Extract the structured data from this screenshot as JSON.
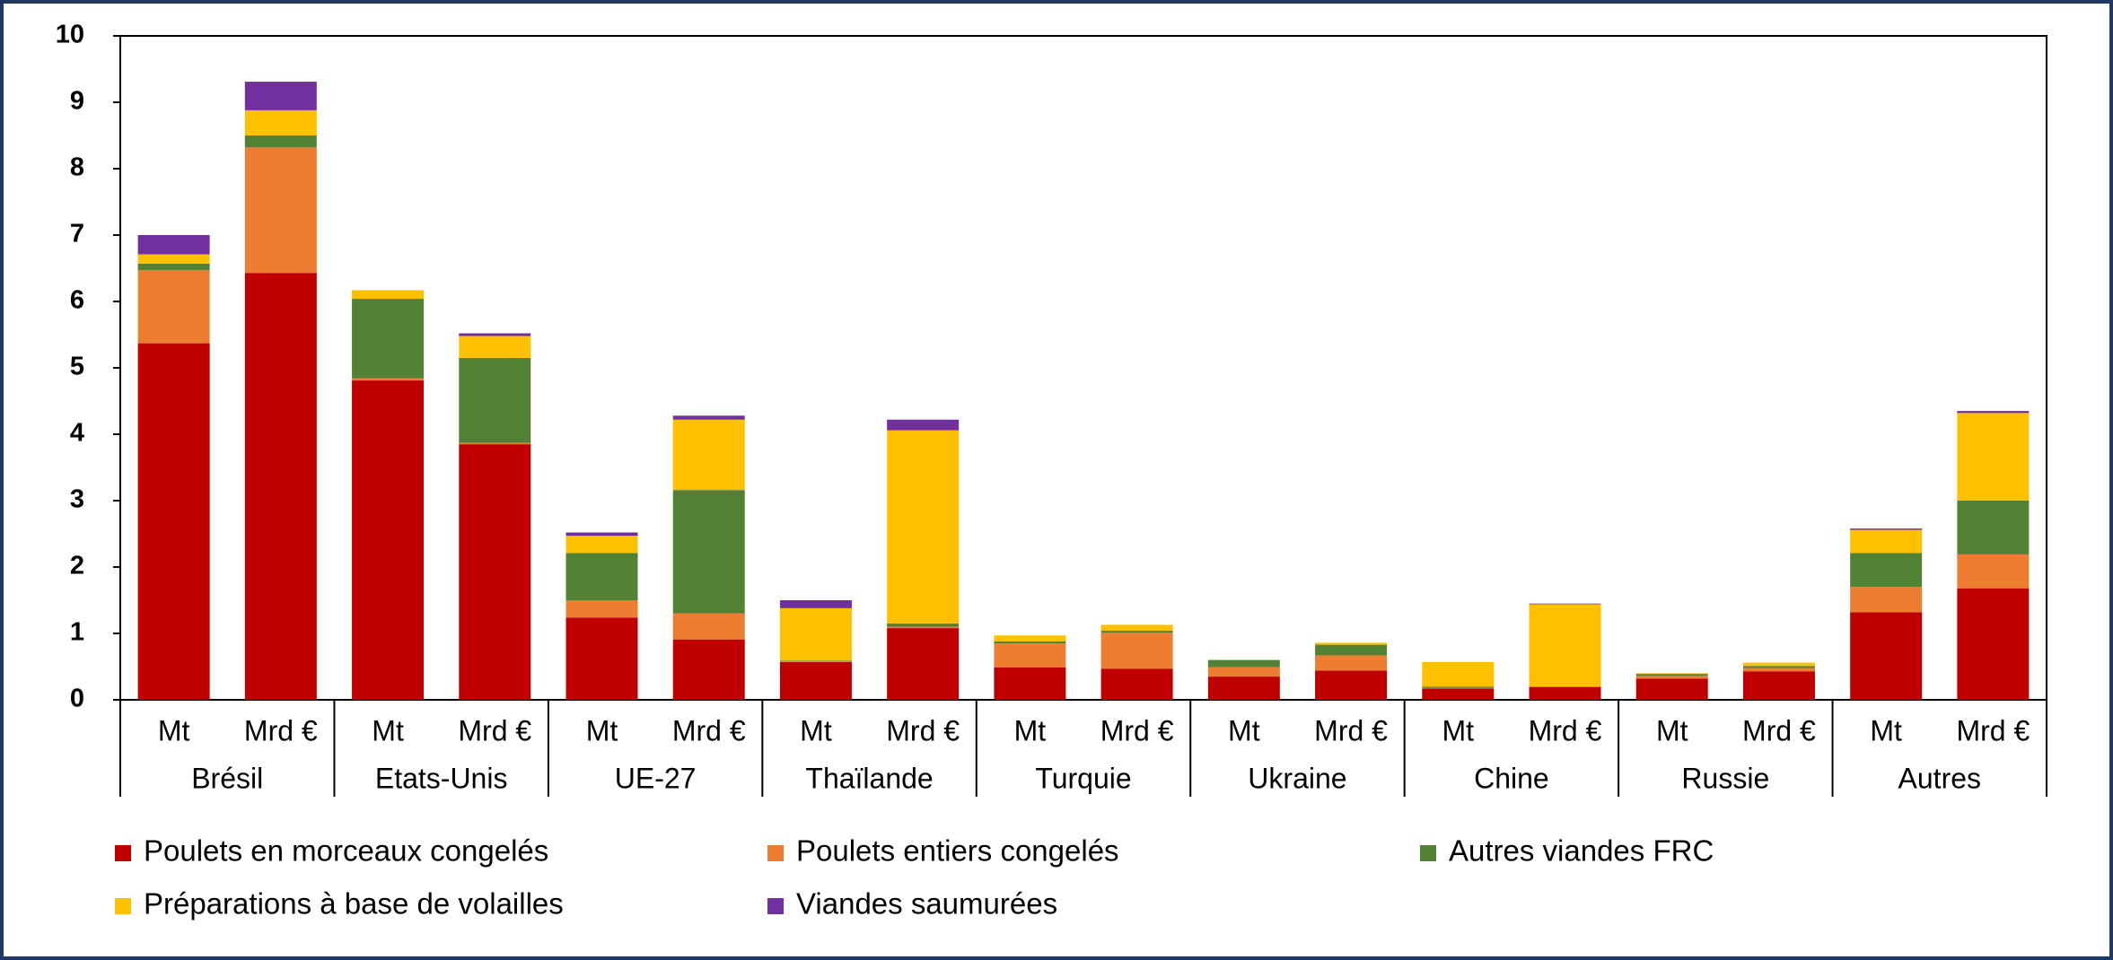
{
  "chart_data": {
    "type": "stacked_bar",
    "groups": [
      "Brésil",
      "Etats-Unis",
      "UE-27",
      "Thaïlande",
      "Turquie",
      "Ukraine",
      "Chine",
      "Russie",
      "Autres"
    ],
    "categories": [
      "Mt",
      "Mrd €",
      "Mt",
      "Mrd €",
      "Mt",
      "Mrd €",
      "Mt",
      "Mrd €",
      "Mt",
      "Mrd €",
      "Mt",
      "Mrd €",
      "Mt",
      "Mrd €",
      "Mt",
      "Mrd €",
      "Mt",
      "Mrd €"
    ],
    "series": [
      {
        "name": "Poulets en morceaux congelés",
        "color": "#c00000",
        "values": [
          5.37,
          6.43,
          4.81,
          3.85,
          1.24,
          0.91,
          0.57,
          1.08,
          0.49,
          0.47,
          0.35,
          0.44,
          0.17,
          0.19,
          0.32,
          0.43,
          1.32,
          1.68
        ]
      },
      {
        "name": "Poulets entiers congelés",
        "color": "#ed7d31",
        "values": [
          1.1,
          1.89,
          0.03,
          0.02,
          0.26,
          0.39,
          0.01,
          0.02,
          0.36,
          0.54,
          0.14,
          0.23,
          0.01,
          0,
          0.04,
          0.05,
          0.38,
          0.51
        ]
      },
      {
        "name": "Autres viandes FRC",
        "color": "#548235",
        "values": [
          0.1,
          0.18,
          1.2,
          1.28,
          0.71,
          1.86,
          0.01,
          0.05,
          0.03,
          0.03,
          0.11,
          0.16,
          0.02,
          0.01,
          0.03,
          0.03,
          0.51,
          0.81
        ]
      },
      {
        "name": "Préparations à base de volailles",
        "color": "#ffc000",
        "values": [
          0.14,
          0.38,
          0.13,
          0.33,
          0.26,
          1.06,
          0.79,
          2.91,
          0.09,
          0.09,
          0,
          0.03,
          0.37,
          1.24,
          0.01,
          0.05,
          0.35,
          1.32
        ]
      },
      {
        "name": "Viandes saumurées",
        "color": "#7030a0",
        "values": [
          0.29,
          0.43,
          0,
          0.04,
          0.05,
          0.06,
          0.12,
          0.16,
          0,
          0,
          0,
          0,
          0,
          0.01,
          0,
          0,
          0.02,
          0.03
        ]
      }
    ],
    "ylim": [
      0,
      10
    ],
    "yticks": [
      0,
      1,
      2,
      3,
      4,
      5,
      6,
      7,
      8,
      9,
      10
    ],
    "legend": "bottom"
  }
}
